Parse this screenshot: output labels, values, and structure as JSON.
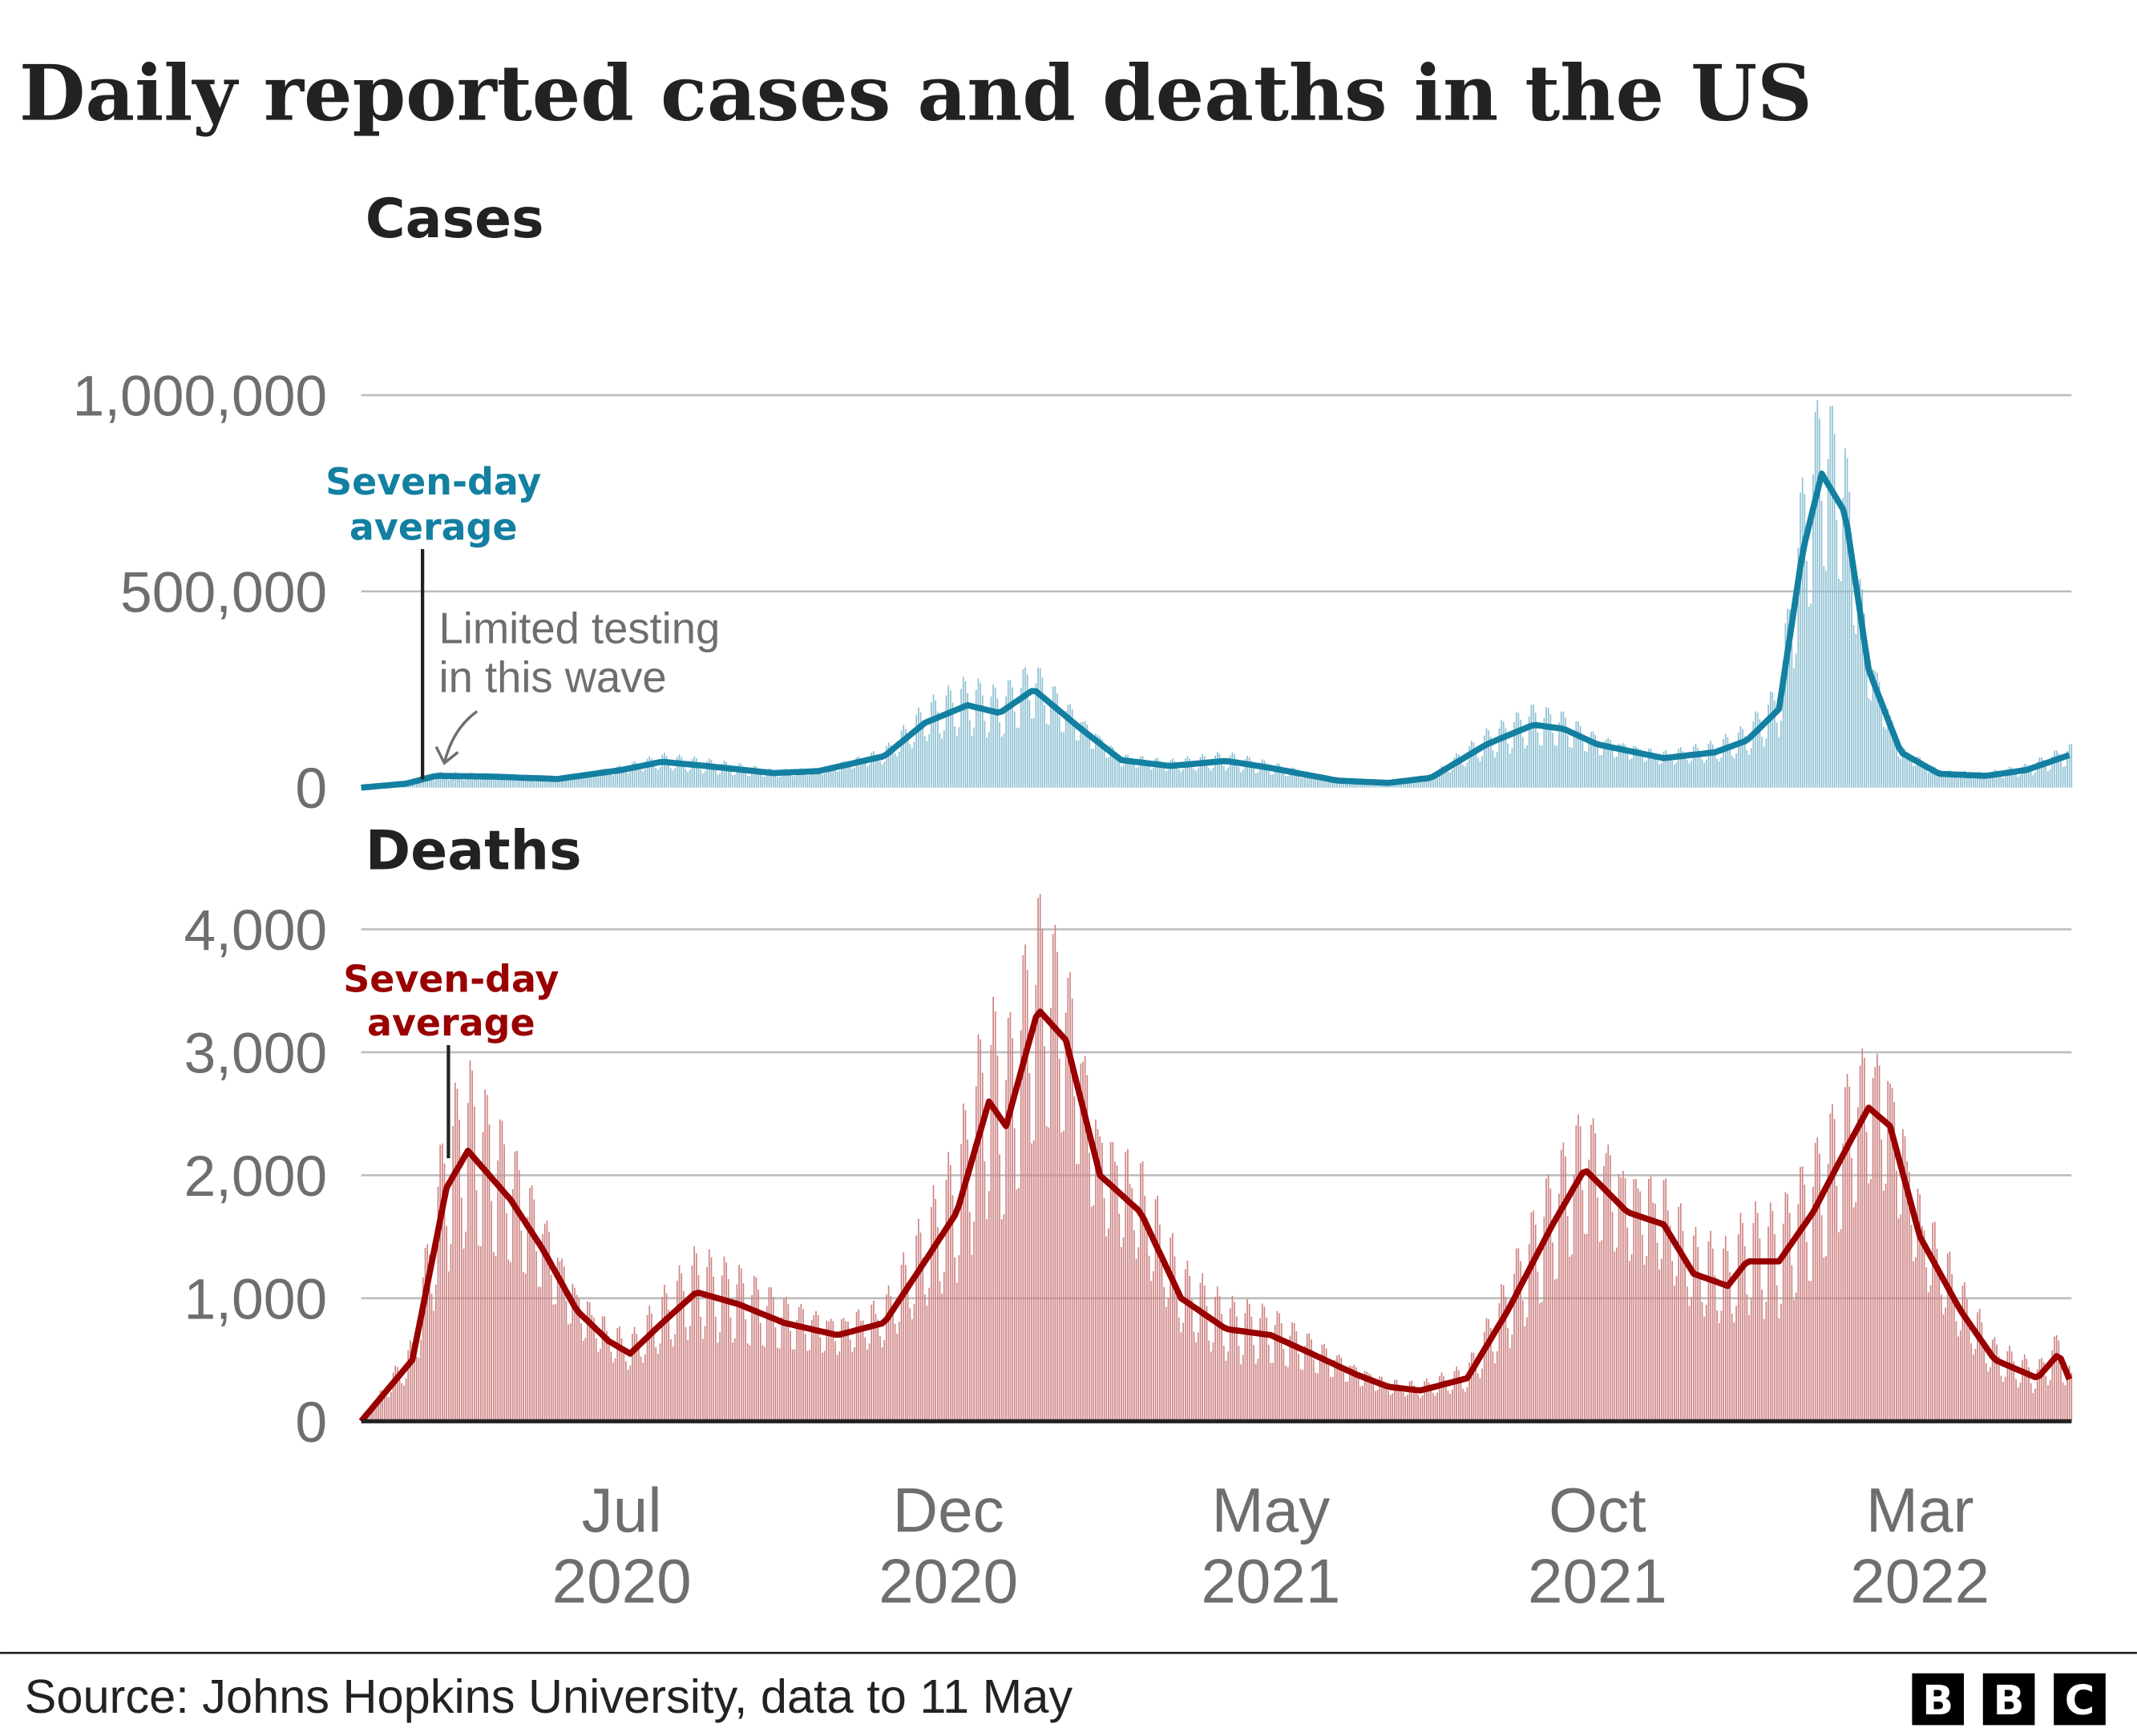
{
  "title": "Daily reported cases and deaths in the US",
  "source": "Source: Johns Hopkins University, data to 11 May",
  "logo": [
    "B",
    "B",
    "C"
  ],
  "colors": {
    "cases_line": "#1380a1",
    "cases_bar": "#8fc1d3",
    "deaths_line": "#990000",
    "deaths_bar": "#cf8585",
    "grid": "#bcbcbc",
    "axis": "#222222",
    "text_gray": "#6e6e6e"
  },
  "chart_data": [
    {
      "type": "bar+line",
      "title": "Cases",
      "date_range": [
        "2020-03-01",
        "2022-05-11"
      ],
      "ylim": [
        0,
        1400000
      ],
      "yticks": [
        {
          "value": 0,
          "label": "0"
        },
        {
          "value": 500000,
          "label": "500,000"
        },
        {
          "value": 1000000,
          "label": "1,000,000"
        }
      ],
      "grid": true,
      "line_label": [
        "Seven-day",
        "average"
      ],
      "annotation": [
        "Limited testing",
        "in this wave"
      ],
      "seven_day_average": [
        [
          "2020-03-01",
          0
        ],
        [
          "2020-03-22",
          10000
        ],
        [
          "2020-04-05",
          30000
        ],
        [
          "2020-05-01",
          28000
        ],
        [
          "2020-06-01",
          22000
        ],
        [
          "2020-07-01",
          45000
        ],
        [
          "2020-07-20",
          66000
        ],
        [
          "2020-08-15",
          52000
        ],
        [
          "2020-09-10",
          37000
        ],
        [
          "2020-10-01",
          42000
        ],
        [
          "2020-11-01",
          80000
        ],
        [
          "2020-11-20",
          165000
        ],
        [
          "2020-12-10",
          210000
        ],
        [
          "2020-12-25",
          190000
        ],
        [
          "2021-01-10",
          250000
        ],
        [
          "2021-02-01",
          150000
        ],
        [
          "2021-02-20",
          70000
        ],
        [
          "2021-03-15",
          55000
        ],
        [
          "2021-04-10",
          68000
        ],
        [
          "2021-05-01",
          50000
        ],
        [
          "2021-06-01",
          18000
        ],
        [
          "2021-06-25",
          12000
        ],
        [
          "2021-07-15",
          25000
        ],
        [
          "2021-08-10",
          110000
        ],
        [
          "2021-09-01",
          160000
        ],
        [
          "2021-09-15",
          150000
        ],
        [
          "2021-10-01",
          110000
        ],
        [
          "2021-11-01",
          75000
        ],
        [
          "2021-11-25",
          90000
        ],
        [
          "2021-12-10",
          120000
        ],
        [
          "2021-12-25",
          200000
        ],
        [
          "2022-01-05",
          600000
        ],
        [
          "2022-01-14",
          800000
        ],
        [
          "2022-01-25",
          700000
        ],
        [
          "2022-02-05",
          300000
        ],
        [
          "2022-02-20",
          90000
        ],
        [
          "2022-03-10",
          35000
        ],
        [
          "2022-04-01",
          30000
        ],
        [
          "2022-04-20",
          45000
        ],
        [
          "2022-05-11",
          85000
        ]
      ]
    },
    {
      "type": "bar+line",
      "title": "Deaths",
      "date_range": [
        "2020-03-01",
        "2022-05-11"
      ],
      "ylim": [
        0,
        4400
      ],
      "yticks": [
        {
          "value": 0,
          "label": "0"
        },
        {
          "value": 1000,
          "label": "1,000"
        },
        {
          "value": 2000,
          "label": "2,000"
        },
        {
          "value": 3000,
          "label": "3,000"
        },
        {
          "value": 4000,
          "label": "4,000"
        }
      ],
      "grid": true,
      "line_label": [
        "Seven-day",
        "average"
      ],
      "seven_day_average": [
        [
          "2020-03-01",
          0
        ],
        [
          "2020-03-25",
          500
        ],
        [
          "2020-04-10",
          1900
        ],
        [
          "2020-04-20",
          2200
        ],
        [
          "2020-05-10",
          1800
        ],
        [
          "2020-05-25",
          1400
        ],
        [
          "2020-06-10",
          900
        ],
        [
          "2020-06-25",
          650
        ],
        [
          "2020-07-05",
          550
        ],
        [
          "2020-07-20",
          800
        ],
        [
          "2020-08-05",
          1050
        ],
        [
          "2020-08-25",
          950
        ],
        [
          "2020-09-15",
          800
        ],
        [
          "2020-10-10",
          700
        ],
        [
          "2020-11-01",
          800
        ],
        [
          "2020-11-20",
          1300
        ],
        [
          "2020-12-05",
          1700
        ],
        [
          "2020-12-20",
          2600
        ],
        [
          "2020-12-28",
          2400
        ],
        [
          "2021-01-12",
          3350
        ],
        [
          "2021-01-25",
          3100
        ],
        [
          "2021-02-10",
          2000
        ],
        [
          "2021-03-01",
          1700
        ],
        [
          "2021-03-20",
          1000
        ],
        [
          "2021-04-10",
          750
        ],
        [
          "2021-05-01",
          700
        ],
        [
          "2021-05-20",
          550
        ],
        [
          "2021-06-10",
          380
        ],
        [
          "2021-06-25",
          280
        ],
        [
          "2021-07-10",
          250
        ],
        [
          "2021-08-01",
          350
        ],
        [
          "2021-08-20",
          900
        ],
        [
          "2021-09-10",
          1600
        ],
        [
          "2021-09-25",
          2050
        ],
        [
          "2021-10-15",
          1700
        ],
        [
          "2021-11-01",
          1600
        ],
        [
          "2021-11-15",
          1200
        ],
        [
          "2021-12-01",
          1100
        ],
        [
          "2021-12-10",
          1300
        ],
        [
          "2021-12-25",
          1300
        ],
        [
          "2022-01-10",
          1700
        ],
        [
          "2022-01-25",
          2200
        ],
        [
          "2022-02-05",
          2550
        ],
        [
          "2022-02-15",
          2400
        ],
        [
          "2022-03-01",
          1500
        ],
        [
          "2022-03-20",
          900
        ],
        [
          "2022-04-05",
          500
        ],
        [
          "2022-04-25",
          350
        ],
        [
          "2022-05-05",
          550
        ],
        [
          "2022-05-11",
          300
        ]
      ]
    }
  ],
  "xticks": [
    {
      "date": "2020-07-01",
      "month": "Jul",
      "year": "2020"
    },
    {
      "date": "2020-12-01",
      "month": "Dec",
      "year": "2020"
    },
    {
      "date": "2021-05-01",
      "month": "May",
      "year": "2021"
    },
    {
      "date": "2021-10-01",
      "month": "Oct",
      "year": "2021"
    },
    {
      "date": "2022-03-01",
      "month": "Mar",
      "year": "2022"
    }
  ]
}
